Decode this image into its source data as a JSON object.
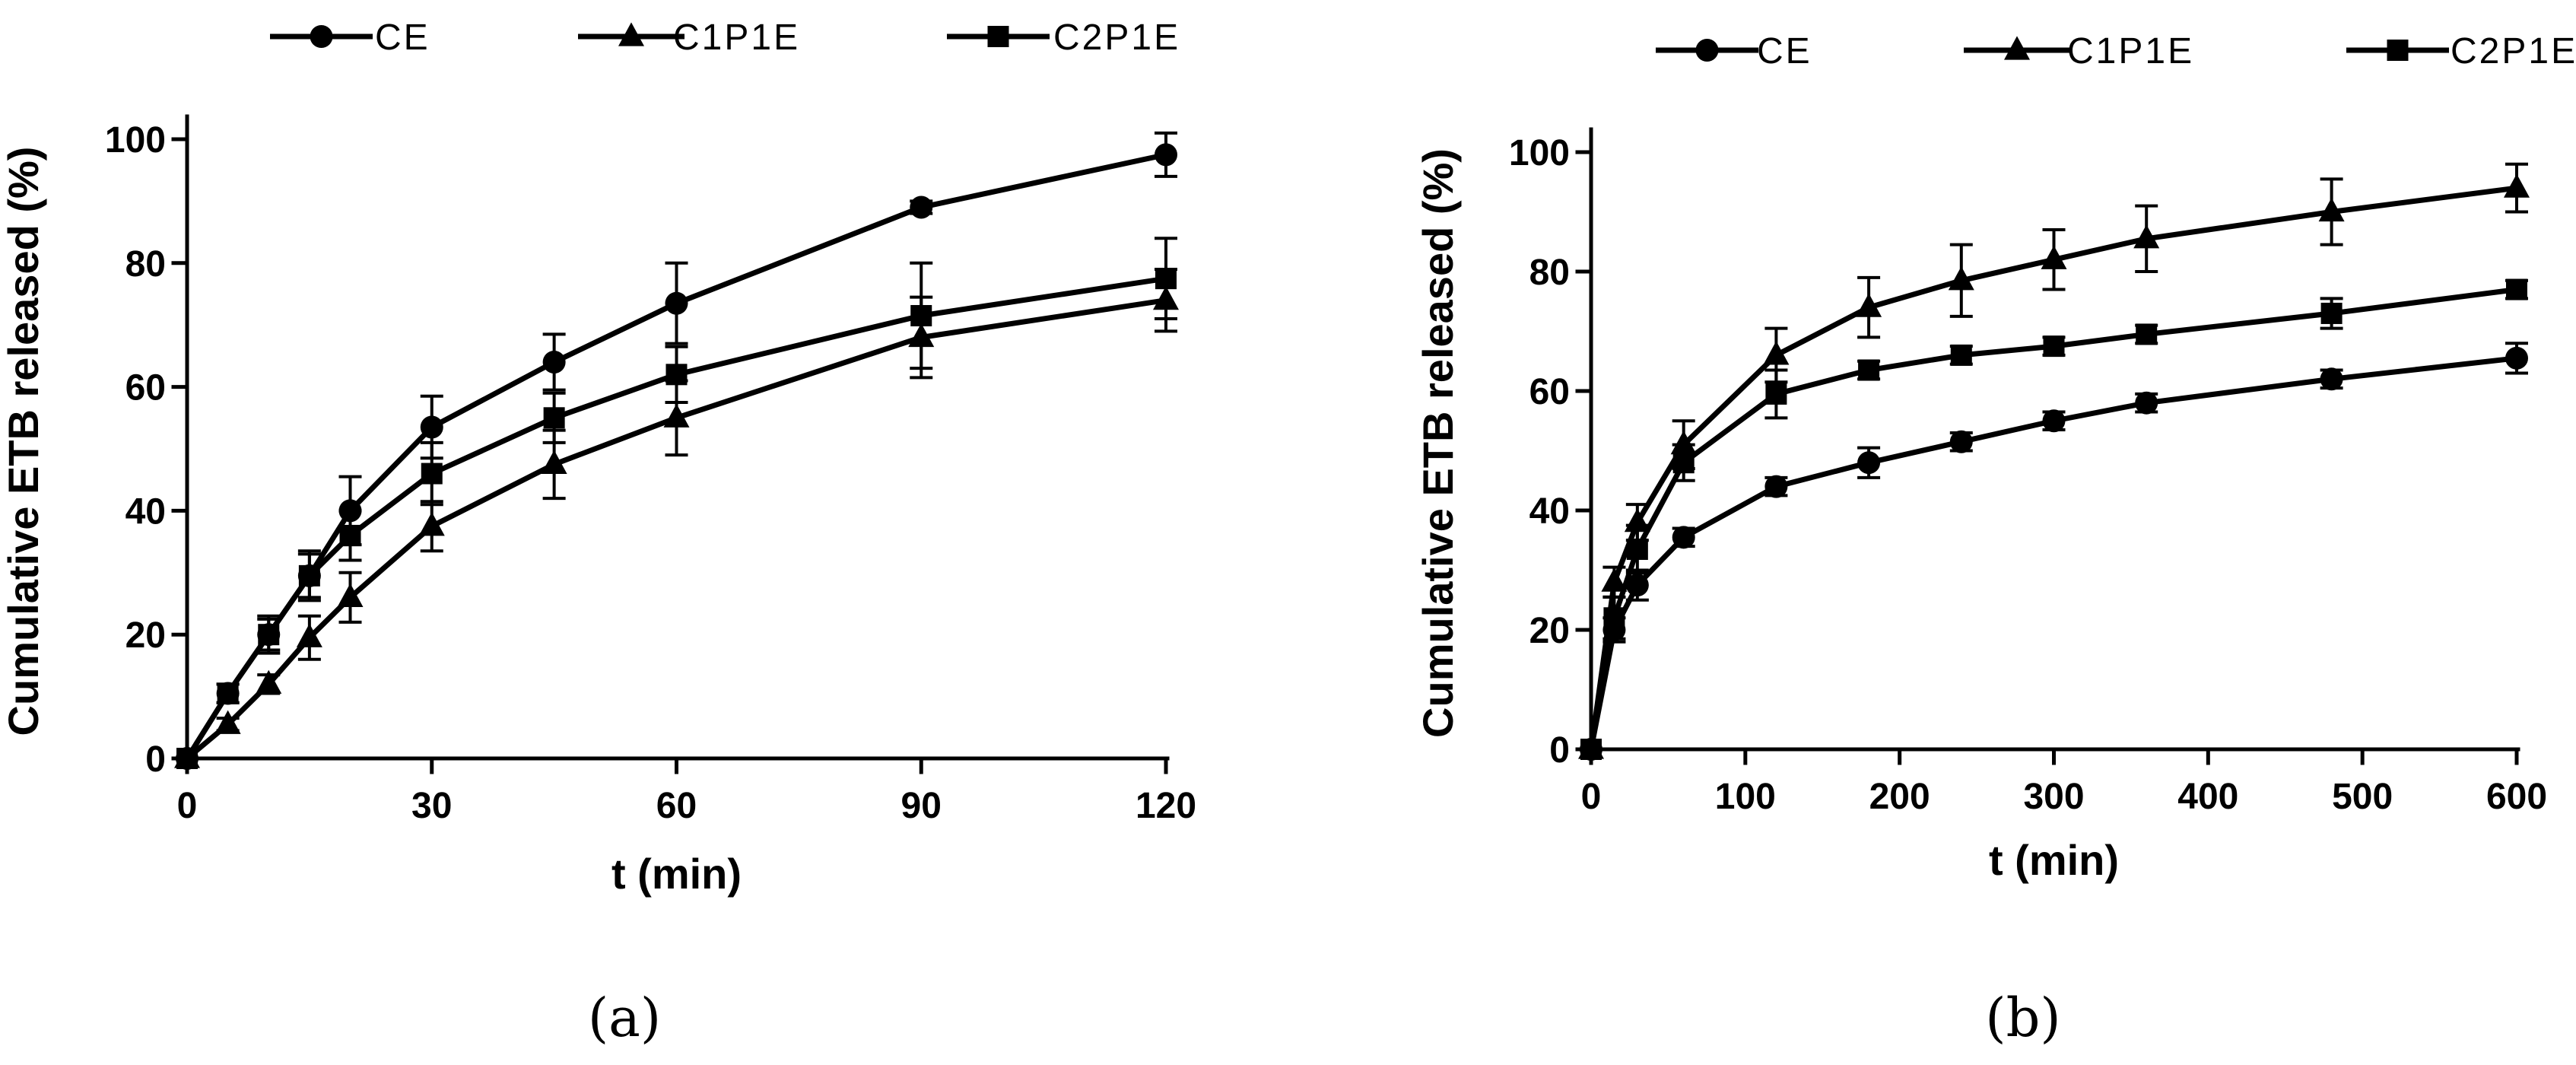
{
  "chart_data": [
    {
      "type": "line",
      "panel_label": "(a)",
      "xlabel": "t (min)",
      "ylabel": "Cumulative ETB released (%)",
      "xlim": [
        0,
        120
      ],
      "ylim": [
        0,
        100
      ],
      "xticks": [
        0,
        30,
        60,
        90,
        120
      ],
      "yticks": [
        0,
        20,
        40,
        60,
        80,
        100
      ],
      "grid": false,
      "legend_position": "top",
      "series": [
        {
          "name": "CE",
          "marker": "circle",
          "x": [
            0,
            5,
            10,
            15,
            20,
            30,
            45,
            60,
            90,
            120
          ],
          "y": [
            0,
            10.5,
            20,
            29.5,
            40,
            53.5,
            64,
            73.5,
            89,
            97.5
          ],
          "err": [
            0,
            1.5,
            2.5,
            3.5,
            5.5,
            5,
            4.5,
            6.5,
            1,
            3.5
          ]
        },
        {
          "name": "C1P1E",
          "marker": "triangle",
          "x": [
            0,
            5,
            10,
            15,
            20,
            30,
            45,
            60,
            90,
            120
          ],
          "y": [
            0,
            5.5,
            12,
            19.5,
            26,
            37.5,
            47.5,
            55,
            68,
            74
          ],
          "err": [
            0,
            1,
            1.5,
            3.5,
            4,
            4,
            5.5,
            6,
            6.5,
            5
          ]
        },
        {
          "name": "C2P1E",
          "marker": "square",
          "x": [
            0,
            5,
            10,
            15,
            20,
            30,
            45,
            60,
            90,
            120
          ],
          "y": [
            0,
            10.5,
            20,
            29.5,
            36,
            46,
            55,
            62,
            71.5,
            77.5
          ],
          "err": [
            0,
            1.5,
            3,
            4,
            4,
            5,
            4,
            4.5,
            8.5,
            6.5
          ]
        }
      ]
    },
    {
      "type": "line",
      "panel_label": "(b)",
      "xlabel": "t (min)",
      "ylabel": "Cumulative ETB released (%)",
      "xlim": [
        0,
        600
      ],
      "ylim": [
        0,
        100
      ],
      "xticks": [
        0,
        100,
        200,
        300,
        400,
        500,
        600
      ],
      "yticks": [
        0,
        20,
        40,
        60,
        80,
        100
      ],
      "grid": false,
      "legend_position": "top",
      "series": [
        {
          "name": "CE",
          "marker": "circle",
          "x": [
            0,
            15,
            30,
            60,
            120,
            180,
            240,
            300,
            360,
            480,
            600
          ],
          "y": [
            0,
            20,
            27.5,
            35.5,
            44,
            48,
            51.5,
            55,
            58,
            62,
            65.5
          ],
          "err": [
            0,
            2,
            2.5,
            1.5,
            1.5,
            2.5,
            1.5,
            1.5,
            1.5,
            1.5,
            2.5
          ]
        },
        {
          "name": "C1P1E",
          "marker": "triangle",
          "x": [
            0,
            15,
            30,
            60,
            120,
            180,
            240,
            300,
            360,
            480,
            600
          ],
          "y": [
            0,
            28,
            38,
            51,
            66,
            74,
            78.5,
            82,
            85.5,
            90,
            94
          ],
          "err": [
            0,
            2.5,
            3,
            4,
            4.5,
            5,
            6,
            5,
            5.5,
            5.5,
            4
          ]
        },
        {
          "name": "C2P1E",
          "marker": "square",
          "x": [
            0,
            15,
            30,
            60,
            120,
            180,
            240,
            300,
            360,
            480,
            600
          ],
          "y": [
            0,
            22,
            33.5,
            48,
            59.5,
            63.5,
            66,
            67.5,
            69.5,
            73,
            77
          ],
          "err": [
            0,
            3.5,
            4,
            3,
            4,
            1.5,
            1.5,
            1.5,
            1.5,
            2.5,
            1.5
          ]
        }
      ]
    }
  ]
}
